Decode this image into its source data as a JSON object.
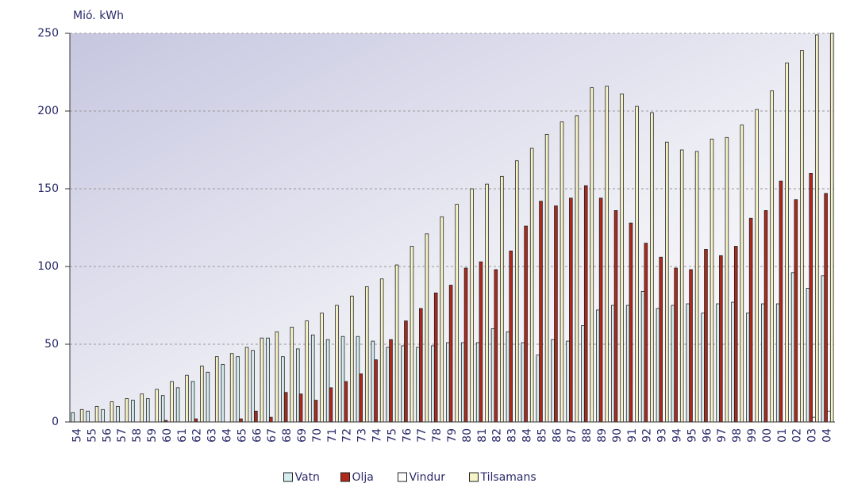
{
  "chart_data": {
    "type": "bar",
    "y_label": "Mió. kWh",
    "categories": [
      "54",
      "55",
      "56",
      "57",
      "58",
      "59",
      "60",
      "61",
      "62",
      "63",
      "64",
      "65",
      "66",
      "67",
      "68",
      "69",
      "70",
      "71",
      "72",
      "73",
      "74",
      "75",
      "76",
      "77",
      "78",
      "79",
      "80",
      "81",
      "82",
      "83",
      "84",
      "85",
      "86",
      "87",
      "88",
      "89",
      "90",
      "91",
      "92",
      "93",
      "94",
      "95",
      "96",
      "97",
      "98",
      "99",
      "00",
      "01",
      "02",
      "03",
      "04"
    ],
    "series": [
      {
        "name": "Vatn",
        "color": "#d4ecee",
        "values": [
          6,
          7,
          8,
          10,
          14,
          15,
          17,
          22,
          26,
          32,
          37,
          42,
          46,
          54,
          42,
          47,
          56,
          53,
          55,
          55,
          52,
          48,
          49,
          48,
          49,
          51,
          51,
          51,
          60,
          58,
          51,
          43,
          53,
          52,
          62,
          72,
          75,
          75,
          84,
          73,
          75,
          76,
          70,
          76,
          77,
          70,
          76,
          76,
          96,
          86,
          94
        ]
      },
      {
        "name": "Olja",
        "color": "#b0281a",
        "values": [
          0,
          0,
          0,
          0,
          0,
          0,
          1,
          0,
          2,
          0,
          0,
          2,
          7,
          3,
          19,
          18,
          14,
          22,
          26,
          31,
          40,
          53,
          65,
          73,
          83,
          88,
          99,
          103,
          98,
          110,
          126,
          142,
          139,
          144,
          152,
          144,
          136,
          128,
          115,
          106,
          99,
          98,
          111,
          107,
          113,
          131,
          136,
          155,
          143,
          160,
          147
        ]
      },
      {
        "name": "Vindur",
        "color": "#ffffff",
        "values": [
          0,
          0,
          0,
          0,
          0,
          0,
          0,
          0,
          0,
          0,
          0,
          0,
          0,
          0,
          0,
          0,
          0,
          0,
          0,
          0,
          0,
          0,
          0,
          0,
          0,
          0,
          0,
          0,
          0,
          0,
          0,
          0,
          0,
          0,
          0,
          0,
          0,
          0,
          0,
          0,
          0,
          0,
          0,
          0,
          0,
          0,
          0,
          0,
          0,
          3,
          7
        ]
      },
      {
        "name": "Tilsamans",
        "color": "#f7f3c8",
        "values": [
          8,
          10,
          13,
          15,
          18,
          21,
          26,
          30,
          36,
          42,
          44,
          48,
          54,
          58,
          61,
          65,
          70,
          75,
          81,
          87,
          92,
          101,
          113,
          121,
          132,
          140,
          150,
          153,
          158,
          168,
          176,
          185,
          193,
          197,
          215,
          216,
          211,
          203,
          199,
          180,
          175,
          174,
          182,
          183,
          191,
          201,
          213,
          231,
          239,
          249,
          250
        ]
      }
    ],
    "ylim": [
      0,
      250
    ],
    "yticks": [
      0,
      50,
      100,
      150,
      200,
      250
    ],
    "grid": true
  }
}
